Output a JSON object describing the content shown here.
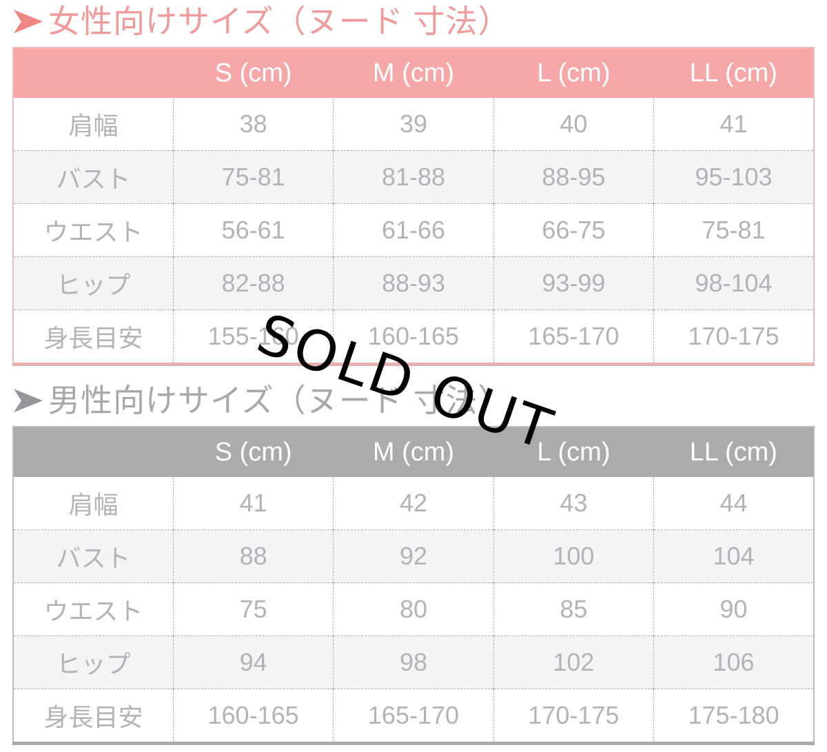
{
  "page": {
    "sold_out_label": "SOLD OUT"
  },
  "colors": {
    "women_accent": "#f6a7a7",
    "women_title": "#f09b9b",
    "men_accent": "#ababab",
    "men_title": "#a8a8aa",
    "cell_text": "#b3b3b6",
    "stamp_text": "#000000"
  },
  "women": {
    "title": "女性向けサイズ（ヌード 寸法）",
    "columns": [
      "S (cm)",
      "M (cm)",
      "L (cm)",
      "LL (cm)"
    ],
    "rows": [
      {
        "label": "肩幅",
        "values": [
          "38",
          "39",
          "40",
          "41"
        ]
      },
      {
        "label": "バスト",
        "values": [
          "75-81",
          "81-88",
          "88-95",
          "95-103"
        ]
      },
      {
        "label": "ウエスト",
        "values": [
          "56-61",
          "61-66",
          "66-75",
          "75-81"
        ]
      },
      {
        "label": "ヒップ",
        "values": [
          "82-88",
          "88-93",
          "93-99",
          "98-104"
        ]
      },
      {
        "label": "身長目安",
        "values": [
          "155-160",
          "160-165",
          "165-170",
          "170-175"
        ]
      }
    ]
  },
  "men": {
    "title": "男性向けサイズ（ヌード 寸法）",
    "columns": [
      "S (cm)",
      "M (cm)",
      "L (cm)",
      "LL (cm)"
    ],
    "rows": [
      {
        "label": "肩幅",
        "values": [
          "41",
          "42",
          "43",
          "44"
        ]
      },
      {
        "label": "バスト",
        "values": [
          "88",
          "92",
          "100",
          "104"
        ]
      },
      {
        "label": "ウエスト",
        "values": [
          "75",
          "80",
          "85",
          "90"
        ]
      },
      {
        "label": "ヒップ",
        "values": [
          "94",
          "98",
          "102",
          "106"
        ]
      },
      {
        "label": "身長目安",
        "values": [
          "160-165",
          "165-170",
          "170-175",
          "175-180"
        ]
      }
    ]
  }
}
